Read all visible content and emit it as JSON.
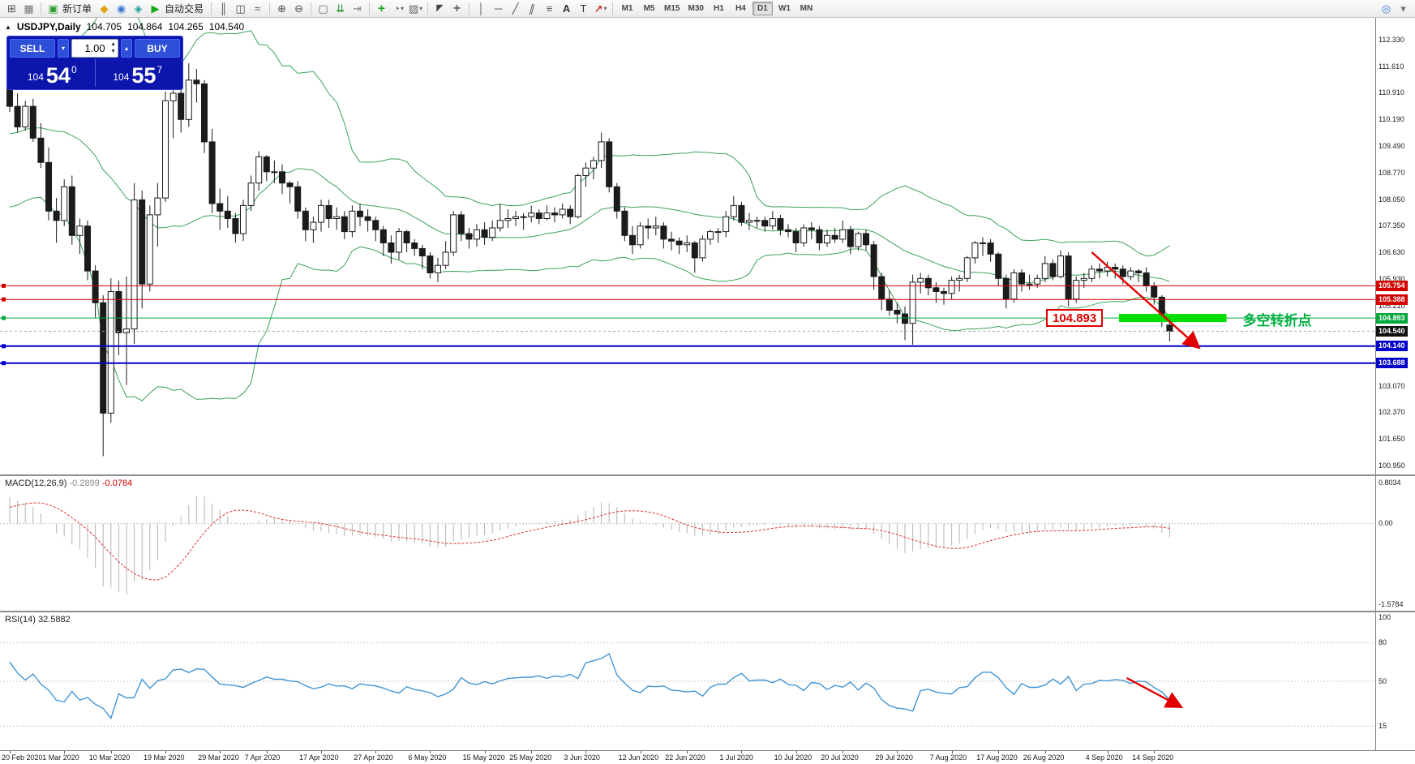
{
  "toolbar": {
    "new_order_label": "新订单",
    "autotrade_label": "自动交易",
    "timeframes": [
      "M1",
      "M5",
      "M15",
      "M30",
      "H1",
      "H4",
      "D1",
      "W1",
      "MN"
    ],
    "active_timeframe": "D1",
    "icons": {
      "new_chart": "⊞",
      "profiles": "▦",
      "new_order": "▣",
      "mql": "◆",
      "community": "◉",
      "market": "◈",
      "autotrading": "▶",
      "bars": "║",
      "candles": "◫",
      "line_chart": "≈",
      "zoom_in": "⊕",
      "zoom_out": "⊖",
      "tile": "▢",
      "autoscroll": "⇊",
      "shift": "⇥",
      "indicators": "+",
      "periods": "◔",
      "templates": "▨",
      "cursor": "◤",
      "crosshair": "+",
      "vline": "│",
      "hline": "─",
      "trendline": "╱",
      "channel": "∥",
      "fibo": "≡",
      "text": "A",
      "label": "T",
      "arrows": "↗",
      "search": "◎",
      "more": "▾"
    }
  },
  "chart_header": {
    "symbol": "USDJPY,Daily",
    "open": "104.705",
    "high": "104.864",
    "low": "104.265",
    "close": "104.540"
  },
  "order_panel": {
    "sell_label": "SELL",
    "buy_label": "BUY",
    "volume": "1.00",
    "sell_price": {
      "prefix": "104",
      "big": "54",
      "sup": "0"
    },
    "buy_price": {
      "prefix": "104",
      "big": "55",
      "sup": "7"
    }
  },
  "price_axis": {
    "ticks": [
      "112.330",
      "111.610",
      "110.910",
      "110.190",
      "109.490",
      "108.770",
      "108.050",
      "107.350",
      "106.630",
      "105.930",
      "105.210",
      "103.070",
      "102.370",
      "101.650",
      "100.950"
    ],
    "tags": [
      {
        "text": "105.754",
        "price": 105.754,
        "color": "#d40000"
      },
      {
        "text": "105.388",
        "price": 105.388,
        "color": "#d40000"
      },
      {
        "text": "104.893",
        "price": 104.893,
        "color": "#00a83c"
      },
      {
        "text": "104.540",
        "price": 104.54,
        "color": "#111111"
      },
      {
        "text": "104.140",
        "price": 104.14,
        "color": "#0000c8"
      },
      {
        "text": "103.688",
        "price": 103.688,
        "color": "#0000c8"
      }
    ]
  },
  "annotations": {
    "price_label": "104.893",
    "cn_text": "多空转折点"
  },
  "macd_panel": {
    "name": "MACD(12,26,9)",
    "v1": "-0.2899",
    "v2": "-0.0784",
    "labels": [
      "0.8034",
      "0.00",
      "-1.5784"
    ]
  },
  "rsi_panel": {
    "name": "RSI(14)",
    "value": "32.5882",
    "labels": [
      "100",
      "80",
      "50",
      "15"
    ]
  },
  "date_axis": [
    {
      "label": "20 Feb 2020",
      "idx": 0
    },
    {
      "label": "1 Mar 2020",
      "idx": 7
    },
    {
      "label": "10 Mar 2020",
      "idx": 13
    },
    {
      "label": "19 Mar 2020",
      "idx": 20
    },
    {
      "label": "29 Mar 2020",
      "idx": 27
    },
    {
      "label": "7 Apr 2020",
      "idx": 33
    },
    {
      "label": "17 Apr 2020",
      "idx": 40
    },
    {
      "label": "27 Apr 2020",
      "idx": 47
    },
    {
      "label": "6 May 2020",
      "idx": 54
    },
    {
      "label": "15 May 2020",
      "idx": 61
    },
    {
      "label": "25 May 2020",
      "idx": 67
    },
    {
      "label": "3 Jun 2020",
      "idx": 74
    },
    {
      "label": "12 Jun 2020",
      "idx": 81
    },
    {
      "label": "22 Jun 2020",
      "idx": 87
    },
    {
      "label": "1 Jul 2020",
      "idx": 94
    },
    {
      "label": "10 Jul 2020",
      "idx": 101
    },
    {
      "label": "20 Jul 2020",
      "idx": 107
    },
    {
      "label": "29 Jul 2020",
      "idx": 114
    },
    {
      "label": "7 Aug 2020",
      "idx": 121
    },
    {
      "label": "17 Aug 2020",
      "idx": 127
    },
    {
      "label": "26 Aug 2020",
      "idx": 133
    },
    {
      "label": "4 Sep 2020",
      "idx": 141
    },
    {
      "label": "14 Sep 2020",
      "idx": 147
    }
  ],
  "chart_data": {
    "type": "candlestick",
    "symbol": "USDJPY",
    "timeframe": "Daily",
    "indicators": {
      "bollinger": {
        "period": 20,
        "dev": 2
      },
      "macd": {
        "fast": 12,
        "slow": 26,
        "signal": 9
      },
      "rsi": {
        "period": 14
      }
    },
    "price_view": {
      "top_price": 112.33,
      "bottom_price": 100.95
    },
    "macd_view": {
      "max": 0.8034,
      "min": -1.5784
    },
    "current_price": 104.54,
    "hlines": [
      {
        "price": 105.754,
        "color": "#d40000",
        "w": 1
      },
      {
        "price": 105.388,
        "color": "#d40000",
        "w": 1
      },
      {
        "price": 104.893,
        "color": "#00a83c",
        "w": 1
      },
      {
        "price": 104.54,
        "color": "#a6a6a6",
        "w": 1,
        "dash": "3,3"
      },
      {
        "price": 104.14,
        "color": "#0000c8",
        "w": 2
      },
      {
        "price": 103.688,
        "color": "#0000c8",
        "w": 2
      }
    ],
    "drawings": {
      "trend_arrow": {
        "x1_idx": 139,
        "p1": 106.65,
        "x2_idx": 152.6,
        "p2": 104.13,
        "color": "#e00000"
      },
      "green_band": {
        "idx_from": 142.5,
        "idx_to": 156.3,
        "price": 104.893,
        "thickness": 10,
        "color": "#00dd00"
      },
      "rsi_arrow": {
        "x1_idx": 143.5,
        "v1": 52.5,
        "x2_idx": 150.3,
        "v2": 30.5,
        "color": "#e00000"
      }
    },
    "pre_closes": [
      109.25,
      108.9,
      109.0,
      108.95,
      108.7,
      108.4,
      108.65,
      109.1,
      109.75,
      109.85,
      110.0,
      109.9,
      109.8,
      109.75,
      110.15,
      110.9,
      111.35,
      112.1,
      111.25
    ],
    "candles": [
      [
        111.05,
        111.35,
        110.4,
        110.55
      ],
      [
        110.55,
        110.9,
        109.85,
        110.0
      ],
      [
        110.0,
        110.7,
        109.9,
        110.55
      ],
      [
        110.55,
        110.75,
        109.6,
        109.7
      ],
      [
        109.7,
        110.1,
        108.9,
        109.05
      ],
      [
        109.05,
        109.45,
        107.5,
        107.75
      ],
      [
        107.75,
        108.1,
        106.9,
        107.5
      ],
      [
        107.5,
        108.6,
        107.35,
        108.4
      ],
      [
        108.4,
        108.7,
        106.85,
        107.1
      ],
      [
        107.1,
        107.55,
        106.6,
        107.35
      ],
      [
        107.35,
        107.5,
        105.9,
        106.15
      ],
      [
        106.15,
        106.3,
        104.9,
        105.3
      ],
      [
        105.3,
        105.5,
        101.2,
        102.35
      ],
      [
        102.35,
        105.95,
        102.1,
        105.6
      ],
      [
        105.6,
        105.9,
        103.9,
        104.5
      ],
      [
        104.5,
        106.0,
        103.1,
        104.6
      ],
      [
        104.6,
        108.5,
        104.2,
        108.05
      ],
      [
        108.05,
        108.3,
        105.15,
        105.8
      ],
      [
        105.8,
        107.9,
        105.6,
        107.65
      ],
      [
        107.65,
        108.5,
        106.8,
        108.1
      ],
      [
        108.1,
        110.95,
        108.0,
        110.7
      ],
      [
        110.7,
        111.5,
        109.7,
        110.9
      ],
      [
        110.9,
        111.35,
        109.85,
        110.2
      ],
      [
        110.2,
        111.7,
        110.0,
        111.25
      ],
      [
        111.25,
        111.55,
        110.65,
        111.15
      ],
      [
        111.15,
        111.25,
        109.3,
        109.6
      ],
      [
        109.6,
        109.95,
        107.7,
        107.95
      ],
      [
        107.95,
        108.35,
        107.25,
        107.75
      ],
      [
        107.75,
        108.15,
        107.3,
        107.55
      ],
      [
        107.55,
        107.7,
        106.9,
        107.15
      ],
      [
        107.15,
        108.05,
        106.95,
        107.9
      ],
      [
        107.9,
        108.7,
        107.75,
        108.5
      ],
      [
        108.5,
        109.35,
        108.3,
        109.2
      ],
      [
        109.2,
        109.25,
        108.55,
        108.8
      ],
      [
        108.8,
        109.1,
        108.5,
        108.8
      ],
      [
        108.8,
        109.0,
        108.2,
        108.5
      ],
      [
        108.5,
        108.55,
        107.95,
        108.4
      ],
      [
        108.4,
        108.55,
        107.55,
        107.75
      ],
      [
        107.75,
        107.85,
        106.95,
        107.25
      ],
      [
        107.25,
        107.6,
        106.9,
        107.45
      ],
      [
        107.45,
        108.05,
        107.2,
        107.9
      ],
      [
        107.9,
        108.05,
        107.3,
        107.55
      ],
      [
        107.55,
        107.85,
        107.25,
        107.6
      ],
      [
        107.6,
        107.75,
        107.0,
        107.2
      ],
      [
        107.2,
        107.9,
        107.05,
        107.75
      ],
      [
        107.75,
        107.95,
        107.35,
        107.6
      ],
      [
        107.6,
        107.8,
        107.2,
        107.5
      ],
      [
        107.5,
        107.6,
        106.95,
        107.25
      ],
      [
        107.25,
        107.35,
        106.55,
        106.9
      ],
      [
        106.9,
        107.1,
        106.35,
        106.65
      ],
      [
        106.65,
        107.3,
        106.45,
        107.2
      ],
      [
        107.2,
        107.25,
        106.65,
        106.9
      ],
      [
        106.9,
        107.0,
        106.55,
        106.75
      ],
      [
        106.75,
        106.85,
        106.2,
        106.55
      ],
      [
        106.55,
        106.65,
        105.95,
        106.1
      ],
      [
        106.1,
        106.5,
        105.85,
        106.3
      ],
      [
        106.3,
        106.95,
        106.2,
        106.65
      ],
      [
        106.65,
        107.75,
        106.55,
        107.65
      ],
      [
        107.65,
        107.75,
        106.95,
        107.15
      ],
      [
        107.15,
        107.3,
        106.75,
        107.0
      ],
      [
        107.0,
        107.4,
        106.8,
        107.25
      ],
      [
        107.25,
        107.45,
        106.85,
        107.05
      ],
      [
        107.05,
        107.5,
        106.95,
        107.3
      ],
      [
        107.3,
        107.95,
        107.2,
        107.5
      ],
      [
        107.5,
        107.8,
        107.3,
        107.55
      ],
      [
        107.55,
        107.75,
        107.35,
        107.6
      ],
      [
        107.6,
        107.7,
        107.25,
        107.6
      ],
      [
        107.6,
        107.9,
        107.45,
        107.7
      ],
      [
        107.7,
        107.8,
        107.4,
        107.55
      ],
      [
        107.55,
        107.9,
        107.5,
        107.7
      ],
      [
        107.7,
        107.85,
        107.45,
        107.65
      ],
      [
        107.65,
        107.95,
        107.55,
        107.8
      ],
      [
        107.8,
        107.9,
        107.4,
        107.6
      ],
      [
        107.6,
        108.75,
        107.55,
        108.7
      ],
      [
        108.7,
        109.05,
        108.4,
        108.9
      ],
      [
        108.9,
        109.2,
        108.6,
        109.1
      ],
      [
        109.1,
        109.85,
        108.9,
        109.6
      ],
      [
        109.6,
        109.7,
        108.25,
        108.4
      ],
      [
        108.4,
        108.5,
        107.55,
        107.75
      ],
      [
        107.75,
        107.85,
        106.95,
        107.1
      ],
      [
        107.1,
        107.35,
        106.6,
        106.85
      ],
      [
        106.85,
        107.45,
        106.75,
        107.35
      ],
      [
        107.35,
        107.55,
        107.0,
        107.3
      ],
      [
        107.3,
        107.6,
        107.1,
        107.35
      ],
      [
        107.35,
        107.45,
        106.75,
        107.0
      ],
      [
        107.0,
        107.2,
        106.7,
        106.95
      ],
      [
        106.95,
        107.05,
        106.6,
        106.85
      ],
      [
        106.85,
        107.1,
        106.65,
        106.9
      ],
      [
        106.9,
        106.95,
        106.1,
        106.5
      ],
      [
        106.5,
        107.1,
        106.4,
        107.0
      ],
      [
        107.0,
        107.25,
        106.85,
        107.2
      ],
      [
        107.2,
        107.3,
        106.9,
        107.2
      ],
      [
        107.2,
        107.75,
        107.05,
        107.6
      ],
      [
        107.6,
        108.15,
        107.5,
        107.9
      ],
      [
        107.9,
        108.0,
        107.35,
        107.45
      ],
      [
        107.45,
        107.7,
        107.25,
        107.5
      ],
      [
        107.5,
        107.6,
        107.3,
        107.5
      ],
      [
        107.5,
        107.6,
        107.2,
        107.35
      ],
      [
        107.35,
        107.75,
        107.25,
        107.55
      ],
      [
        107.55,
        107.65,
        107.1,
        107.25
      ],
      [
        107.25,
        107.4,
        107.05,
        107.2
      ],
      [
        107.2,
        107.3,
        106.65,
        106.9
      ],
      [
        106.9,
        107.4,
        106.8,
        107.3
      ],
      [
        107.3,
        107.45,
        107.0,
        107.25
      ],
      [
        107.25,
        107.35,
        106.7,
        106.9
      ],
      [
        106.9,
        107.25,
        106.8,
        107.1
      ],
      [
        107.1,
        107.3,
        106.9,
        107.0
      ],
      [
        107.0,
        107.5,
        106.9,
        107.25
      ],
      [
        107.25,
        107.35,
        106.6,
        106.8
      ],
      [
        106.8,
        107.2,
        106.7,
        107.15
      ],
      [
        107.15,
        107.25,
        106.7,
        106.85
      ],
      [
        106.85,
        106.95,
        105.65,
        106.0
      ],
      [
        106.0,
        106.1,
        105.1,
        105.4
      ],
      [
        105.4,
        105.65,
        104.95,
        105.1
      ],
      [
        105.1,
        105.3,
        104.75,
        105.0
      ],
      [
        105.0,
        105.2,
        104.3,
        104.75
      ],
      [
        104.75,
        106.05,
        104.18,
        105.85
      ],
      [
        105.85,
        106.1,
        105.55,
        105.95
      ],
      [
        105.95,
        106.05,
        105.5,
        105.7
      ],
      [
        105.7,
        105.85,
        105.3,
        105.6
      ],
      [
        105.6,
        105.7,
        105.25,
        105.55
      ],
      [
        105.55,
        106.0,
        105.4,
        105.9
      ],
      [
        105.9,
        106.05,
        105.6,
        105.95
      ],
      [
        105.95,
        106.55,
        105.85,
        106.5
      ],
      [
        106.5,
        106.95,
        106.35,
        106.9
      ],
      [
        106.9,
        107.05,
        106.55,
        106.9
      ],
      [
        106.9,
        107.0,
        106.4,
        106.6
      ],
      [
        106.6,
        106.65,
        105.75,
        105.95
      ],
      [
        105.95,
        106.05,
        105.15,
        105.4
      ],
      [
        105.4,
        106.2,
        105.3,
        106.1
      ],
      [
        106.1,
        106.2,
        105.6,
        105.8
      ],
      [
        105.8,
        106.05,
        105.65,
        105.8
      ],
      [
        105.8,
        106.05,
        105.7,
        105.95
      ],
      [
        105.95,
        106.55,
        105.85,
        106.35
      ],
      [
        106.35,
        106.45,
        105.9,
        106.0
      ],
      [
        106.0,
        106.7,
        105.95,
        106.55
      ],
      [
        106.55,
        106.65,
        105.2,
        105.4
      ],
      [
        105.4,
        106.0,
        105.3,
        105.9
      ],
      [
        105.9,
        106.1,
        105.7,
        105.95
      ],
      [
        105.95,
        106.3,
        105.85,
        106.2
      ],
      [
        106.2,
        106.35,
        105.95,
        106.15
      ],
      [
        106.15,
        106.4,
        106.0,
        106.25
      ],
      [
        106.25,
        106.35,
        105.95,
        106.2
      ],
      [
        106.2,
        106.3,
        105.8,
        106.0
      ],
      [
        106.0,
        106.25,
        105.9,
        106.15
      ],
      [
        106.15,
        106.2,
        105.85,
        106.1
      ],
      [
        106.1,
        106.25,
        105.6,
        105.75
      ],
      [
        105.75,
        105.85,
        105.25,
        105.45
      ],
      [
        105.45,
        105.5,
        104.65,
        104.8
      ],
      [
        104.705,
        104.864,
        104.265,
        104.54
      ]
    ]
  }
}
